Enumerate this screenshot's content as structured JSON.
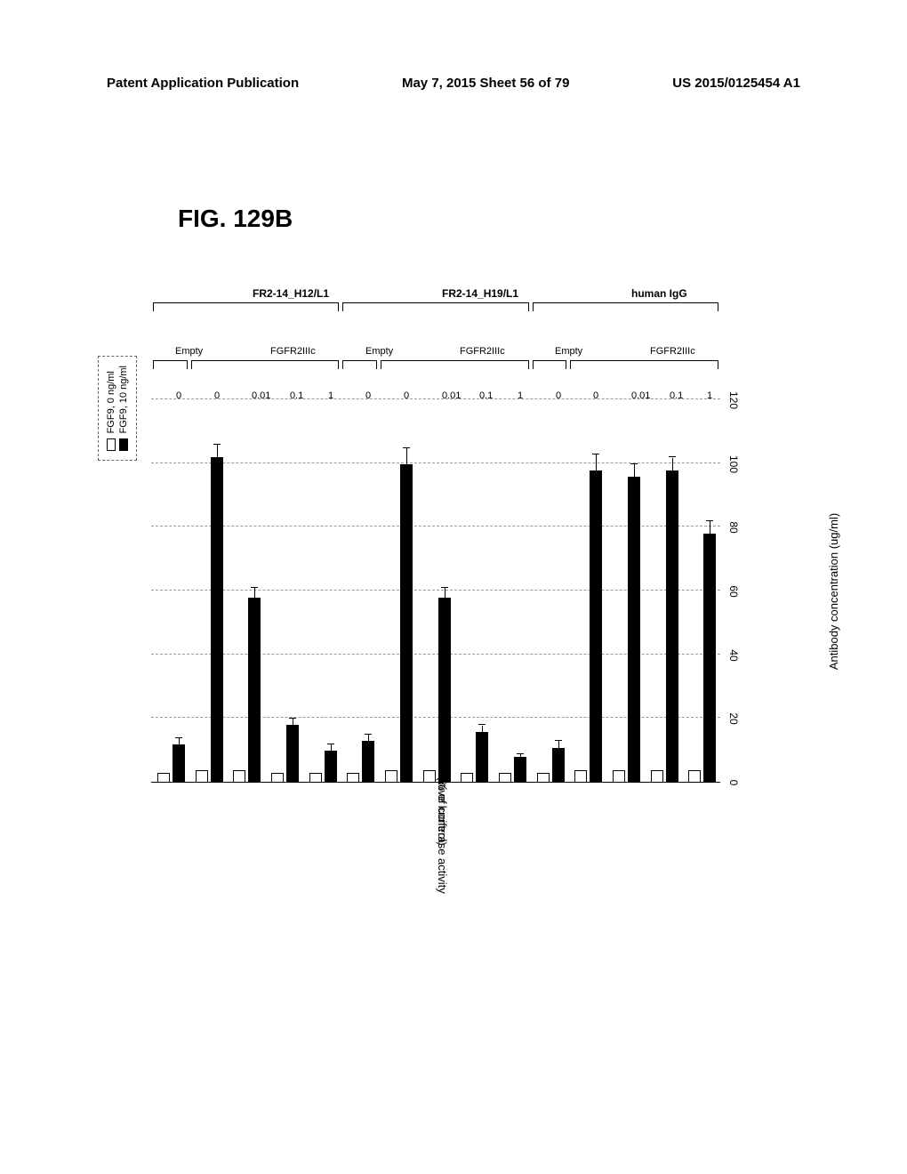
{
  "header": {
    "left": "Patent Application Publication",
    "center": "May 7, 2015   Sheet 56 of 79",
    "right": "US 2015/0125454 A1"
  },
  "figure_label": "FIG. 129B",
  "chart": {
    "type": "bar",
    "y_axis_label_line1": "Relative luciferase activity",
    "y_axis_label_line2": "(% of control)",
    "x_axis_label": "Antibody concentration (ug/ml)",
    "ylim": [
      0,
      120
    ],
    "ytick_step": 20,
    "yticks": [
      0,
      20,
      40,
      60,
      80,
      100,
      120
    ],
    "grid_color": "#999999",
    "background_color": "#ffffff",
    "bar_colors": {
      "fgf9_0": "#ffffff",
      "fgf9_10": "#000000"
    },
    "legend": {
      "items": [
        {
          "label": "FGF9, 0 ng/ml",
          "swatch": "white"
        },
        {
          "label": "FGF9, 10 ng/ml",
          "swatch": "black"
        }
      ]
    },
    "data": [
      {
        "tick": "0",
        "receptor": "Empty",
        "antibody": "FR2-14_H12/L1",
        "white": 3,
        "black": 12,
        "err_b": 2
      },
      {
        "tick": "0",
        "receptor": "FGFR2IIIc",
        "antibody": "FR2-14_H12/L1",
        "white": 4,
        "black": 102,
        "err_b": 4
      },
      {
        "tick": "0.01",
        "receptor": "FGFR2IIIc",
        "antibody": "FR2-14_H12/L1",
        "white": 4,
        "black": 58,
        "err_b": 3
      },
      {
        "tick": "0.1",
        "receptor": "FGFR2IIIc",
        "antibody": "FR2-14_H12/L1",
        "white": 3,
        "black": 18,
        "err_b": 2
      },
      {
        "tick": "1",
        "receptor": "FGFR2IIIc",
        "antibody": "FR2-14_H12/L1",
        "white": 3,
        "black": 10,
        "err_b": 2
      },
      {
        "tick": "0",
        "receptor": "Empty",
        "antibody": "FR2-14_H19/L1",
        "white": 3,
        "black": 13,
        "err_b": 2
      },
      {
        "tick": "0",
        "receptor": "FGFR2IIIc",
        "antibody": "FR2-14_H19/L1",
        "white": 4,
        "black": 100,
        "err_b": 5
      },
      {
        "tick": "0.01",
        "receptor": "FGFR2IIIc",
        "antibody": "FR2-14_H19/L1",
        "white": 4,
        "black": 58,
        "err_b": 3
      },
      {
        "tick": "0.1",
        "receptor": "FGFR2IIIc",
        "antibody": "FR2-14_H19/L1",
        "white": 3,
        "black": 16,
        "err_b": 2
      },
      {
        "tick": "1",
        "receptor": "FGFR2IIIc",
        "antibody": "FR2-14_H19/L1",
        "white": 3,
        "black": 8,
        "err_b": 1
      },
      {
        "tick": "0",
        "receptor": "Empty",
        "antibody": "human IgG",
        "white": 3,
        "black": 11,
        "err_b": 2
      },
      {
        "tick": "0",
        "receptor": "FGFR2IIIc",
        "antibody": "human IgG",
        "white": 4,
        "black": 98,
        "err_b": 5
      },
      {
        "tick": "0.01",
        "receptor": "FGFR2IIIc",
        "antibody": "human IgG",
        "white": 4,
        "black": 96,
        "err_b": 4
      },
      {
        "tick": "0.1",
        "receptor": "FGFR2IIIc",
        "antibody": "human IgG",
        "white": 4,
        "black": 98,
        "err_b": 4
      },
      {
        "tick": "1",
        "receptor": "FGFR2IIIc",
        "antibody": "human IgG",
        "white": 4,
        "black": 78,
        "err_b": 4
      }
    ],
    "receptor_groups": [
      {
        "label": "Empty",
        "start": 0,
        "end": 0
      },
      {
        "label": "FGFR2IIIc",
        "start": 1,
        "end": 4
      },
      {
        "label": "Empty",
        "start": 5,
        "end": 5
      },
      {
        "label": "FGFR2IIIc",
        "start": 6,
        "end": 9
      },
      {
        "label": "Empty",
        "start": 10,
        "end": 10
      },
      {
        "label": "FGFR2IIIc",
        "start": 11,
        "end": 14
      }
    ],
    "antibody_groups": [
      {
        "label": "FR2-14_H12/L1",
        "start": 0,
        "end": 4
      },
      {
        "label": "FR2-14_H19/L1",
        "start": 5,
        "end": 9
      },
      {
        "label": "human IgG",
        "start": 10,
        "end": 14
      }
    ]
  }
}
